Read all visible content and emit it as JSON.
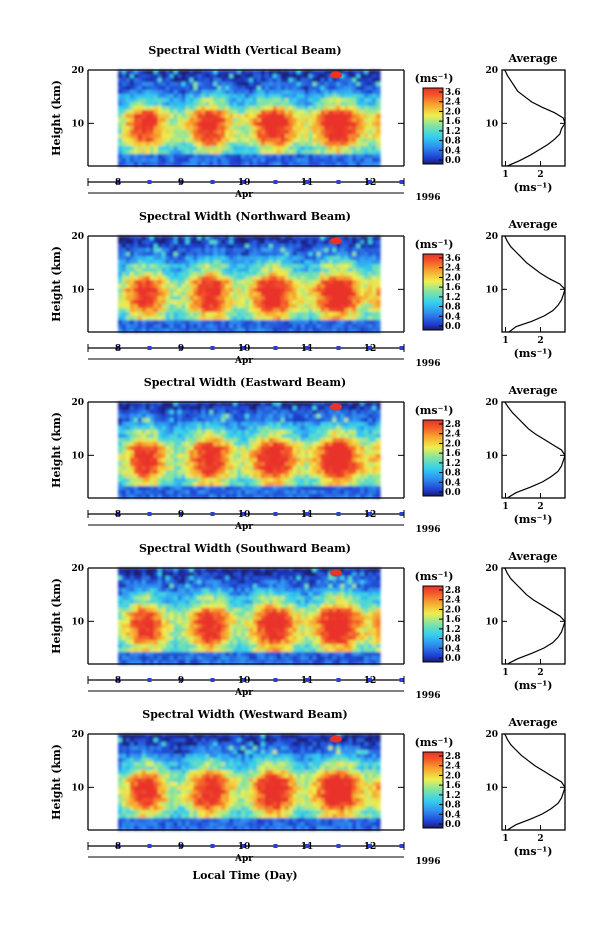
{
  "figure": {
    "xlabel": "Local Time (Day)",
    "ylabel": "Height (km)",
    "month_label": "Apr",
    "year_label": "1996",
    "colorbar_unit": "(ms⁻¹)",
    "profile_title": "Average",
    "profile_unit": "(ms⁻¹)",
    "colors": {
      "axis": "#000000",
      "day_marker": "#2b3fd0"
    }
  },
  "chart_data": [
    {
      "type": "heatmap",
      "title": "Spectral Width (Vertical Beam)",
      "x_ticks": [
        "8",
        "9",
        "10",
        "11",
        "12"
      ],
      "y_ticks": [
        "20",
        "10"
      ],
      "ylim": [
        2,
        20
      ],
      "colorbar_ticks": [
        "3.6",
        "2.4",
        "2.0",
        "1.6",
        "1.2",
        "0.8",
        "0.4",
        "0.0"
      ],
      "colorbar_range": [
        0.0,
        3.6
      ],
      "average_profile": {
        "x_ticks": [
          "1",
          "2"
        ],
        "y_ticks": [
          "20",
          "10"
        ],
        "xlim": [
          0.9,
          2.7
        ],
        "height_km": [
          2,
          3,
          4,
          5,
          6,
          7,
          8,
          9,
          10,
          11,
          12,
          13,
          14,
          15,
          16,
          17,
          18,
          19,
          20
        ],
        "width_ms": [
          1.05,
          1.4,
          1.7,
          1.95,
          2.2,
          2.4,
          2.55,
          2.6,
          2.7,
          2.65,
          2.4,
          2.05,
          1.75,
          1.55,
          1.35,
          1.25,
          1.15,
          1.05,
          0.98
        ]
      }
    },
    {
      "type": "heatmap",
      "title": "Spectral Width (Northward Beam)",
      "x_ticks": [
        "8",
        "9",
        "10",
        "11",
        "12"
      ],
      "y_ticks": [
        "20",
        "10"
      ],
      "ylim": [
        2,
        20
      ],
      "colorbar_ticks": [
        "3.6",
        "2.4",
        "2.0",
        "1.6",
        "1.2",
        "0.8",
        "0.4",
        "0.0"
      ],
      "colorbar_range": [
        0.0,
        3.6
      ],
      "average_profile": {
        "x_ticks": [
          "1",
          "2"
        ],
        "y_ticks": [
          "20",
          "10"
        ],
        "xlim": [
          0.9,
          2.7
        ],
        "height_km": [
          2,
          3,
          4,
          5,
          6,
          7,
          8,
          9,
          10,
          11,
          12,
          13,
          14,
          15,
          16,
          17,
          18,
          19,
          20
        ],
        "width_ms": [
          1.1,
          1.3,
          1.75,
          2.1,
          2.35,
          2.5,
          2.6,
          2.65,
          2.7,
          2.55,
          2.25,
          2.0,
          1.8,
          1.6,
          1.45,
          1.3,
          1.15,
          1.05,
          0.98
        ]
      }
    },
    {
      "type": "heatmap",
      "title": "Spectral Width (Eastward Beam)",
      "x_ticks": [
        "8",
        "9",
        "10",
        "11",
        "12"
      ],
      "y_ticks": [
        "20",
        "10"
      ],
      "ylim": [
        2,
        20
      ],
      "colorbar_ticks": [
        "2.8",
        "2.4",
        "2.0",
        "1.6",
        "1.2",
        "0.8",
        "0.4",
        "0.0"
      ],
      "colorbar_range": [
        0.0,
        2.8
      ],
      "average_profile": {
        "x_ticks": [
          "1",
          "2"
        ],
        "y_ticks": [
          "20",
          "10"
        ],
        "xlim": [
          0.9,
          2.7
        ],
        "height_km": [
          2,
          3,
          4,
          5,
          6,
          7,
          8,
          9,
          10,
          11,
          12,
          13,
          14,
          15,
          16,
          17,
          18,
          19,
          20
        ],
        "width_ms": [
          1.05,
          1.3,
          1.7,
          2.05,
          2.3,
          2.5,
          2.6,
          2.65,
          2.7,
          2.6,
          2.35,
          2.1,
          1.85,
          1.65,
          1.5,
          1.35,
          1.2,
          1.08,
          0.98
        ]
      }
    },
    {
      "type": "heatmap",
      "title": "Spectral Width (Southward Beam)",
      "x_ticks": [
        "8",
        "9",
        "10",
        "11",
        "12"
      ],
      "y_ticks": [
        "20",
        "10"
      ],
      "ylim": [
        2,
        20
      ],
      "colorbar_ticks": [
        "2.8",
        "2.4",
        "2.0",
        "1.6",
        "1.2",
        "0.8",
        "0.4",
        "0.0"
      ],
      "colorbar_range": [
        0.0,
        2.8
      ],
      "average_profile": {
        "x_ticks": [
          "1",
          "2"
        ],
        "y_ticks": [
          "20",
          "10"
        ],
        "xlim": [
          0.9,
          2.7
        ],
        "height_km": [
          2,
          3,
          4,
          5,
          6,
          7,
          8,
          9,
          10,
          11,
          12,
          13,
          14,
          15,
          16,
          17,
          18,
          19,
          20
        ],
        "width_ms": [
          1.05,
          1.35,
          1.75,
          2.1,
          2.35,
          2.5,
          2.6,
          2.65,
          2.7,
          2.55,
          2.3,
          2.05,
          1.8,
          1.6,
          1.45,
          1.3,
          1.15,
          1.05,
          0.98
        ]
      }
    },
    {
      "type": "heatmap",
      "title": "Spectral Width (Westward Beam)",
      "x_ticks": [
        "8",
        "9",
        "10",
        "11",
        "12"
      ],
      "y_ticks": [
        "20",
        "10"
      ],
      "ylim": [
        2,
        20
      ],
      "colorbar_ticks": [
        "2.8",
        "2.4",
        "2.0",
        "1.6",
        "1.2",
        "0.8",
        "0.4",
        "0.0"
      ],
      "colorbar_range": [
        0.0,
        2.8
      ],
      "average_profile": {
        "x_ticks": [
          "1",
          "2"
        ],
        "y_ticks": [
          "20",
          "10"
        ],
        "xlim": [
          0.9,
          2.7
        ],
        "height_km": [
          2,
          3,
          4,
          5,
          6,
          7,
          8,
          9,
          10,
          11,
          12,
          13,
          14,
          15,
          16,
          17,
          18,
          19,
          20
        ],
        "width_ms": [
          1.05,
          1.3,
          1.7,
          2.05,
          2.3,
          2.5,
          2.6,
          2.65,
          2.7,
          2.6,
          2.35,
          2.1,
          1.85,
          1.65,
          1.45,
          1.3,
          1.15,
          1.05,
          0.98
        ]
      }
    }
  ]
}
